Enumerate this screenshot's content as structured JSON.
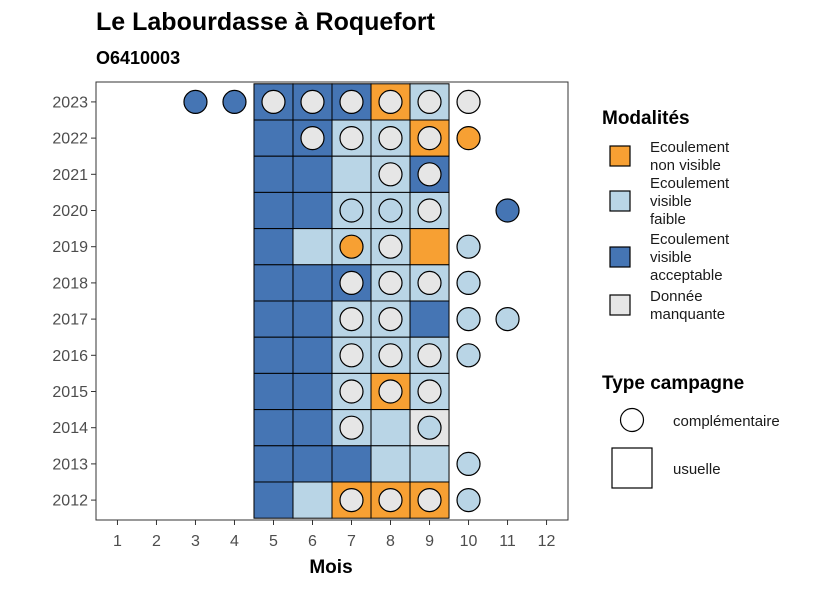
{
  "colors": {
    "non_visible": "#F7A033",
    "faible": "#B9D5E6",
    "acceptable": "#4575B4",
    "manquante": "#E6E6E6"
  },
  "chart_data": {
    "type": "heatmap",
    "title": "Le Labourdasse à Roquefort",
    "subtitle": "O6410003",
    "xlabel": "Mois",
    "ylabel": "",
    "x_ticks": [
      "1",
      "2",
      "3",
      "4",
      "5",
      "6",
      "7",
      "8",
      "9",
      "10",
      "11",
      "12"
    ],
    "y_ticks": [
      "2012",
      "2013",
      "2014",
      "2015",
      "2016",
      "2017",
      "2018",
      "2019",
      "2020",
      "2021",
      "2022",
      "2023"
    ],
    "grid": false,
    "legend_position": "right",
    "legend": {
      "modalites_title": "Modalités",
      "modalites": [
        {
          "key": "non_visible",
          "lines": [
            "Ecoulement",
            "non visible"
          ]
        },
        {
          "key": "faible",
          "lines": [
            "Ecoulement",
            "visible",
            "faible"
          ]
        },
        {
          "key": "acceptable",
          "lines": [
            "Ecoulement",
            "visible",
            "acceptable"
          ]
        },
        {
          "key": "manquante",
          "lines": [
            "Donnée",
            "manquante"
          ]
        }
      ],
      "campagne_title": "Type campagne",
      "campagnes": [
        {
          "shape": "circle",
          "label": "complémentaire"
        },
        {
          "shape": "square",
          "label": "usuelle"
        }
      ]
    },
    "cells": [
      {
        "year": 2023,
        "month": 3,
        "shape": "circle",
        "value": "acceptable"
      },
      {
        "year": 2023,
        "month": 4,
        "shape": "circle",
        "value": "acceptable"
      },
      {
        "year": 2023,
        "month": 5,
        "shape": "square",
        "value": "acceptable"
      },
      {
        "year": 2023,
        "month": 5,
        "shape": "circle",
        "value": "manquante"
      },
      {
        "year": 2023,
        "month": 6,
        "shape": "square",
        "value": "acceptable"
      },
      {
        "year": 2023,
        "month": 6,
        "shape": "circle",
        "value": "manquante"
      },
      {
        "year": 2023,
        "month": 7,
        "shape": "square",
        "value": "acceptable"
      },
      {
        "year": 2023,
        "month": 7,
        "shape": "circle",
        "value": "manquante"
      },
      {
        "year": 2023,
        "month": 8,
        "shape": "square",
        "value": "non_visible"
      },
      {
        "year": 2023,
        "month": 8,
        "shape": "circle",
        "value": "manquante"
      },
      {
        "year": 2023,
        "month": 9,
        "shape": "square",
        "value": "faible"
      },
      {
        "year": 2023,
        "month": 9,
        "shape": "circle",
        "value": "manquante"
      },
      {
        "year": 2023,
        "month": 10,
        "shape": "circle",
        "value": "manquante"
      },
      {
        "year": 2022,
        "month": 5,
        "shape": "square",
        "value": "acceptable"
      },
      {
        "year": 2022,
        "month": 6,
        "shape": "square",
        "value": "acceptable"
      },
      {
        "year": 2022,
        "month": 6,
        "shape": "circle",
        "value": "manquante"
      },
      {
        "year": 2022,
        "month": 7,
        "shape": "square",
        "value": "faible"
      },
      {
        "year": 2022,
        "month": 7,
        "shape": "circle",
        "value": "manquante"
      },
      {
        "year": 2022,
        "month": 8,
        "shape": "square",
        "value": "faible"
      },
      {
        "year": 2022,
        "month": 8,
        "shape": "circle",
        "value": "manquante"
      },
      {
        "year": 2022,
        "month": 9,
        "shape": "square",
        "value": "non_visible"
      },
      {
        "year": 2022,
        "month": 9,
        "shape": "circle",
        "value": "manquante"
      },
      {
        "year": 2022,
        "month": 10,
        "shape": "circle",
        "value": "non_visible"
      },
      {
        "year": 2021,
        "month": 5,
        "shape": "square",
        "value": "acceptable"
      },
      {
        "year": 2021,
        "month": 6,
        "shape": "square",
        "value": "acceptable"
      },
      {
        "year": 2021,
        "month": 7,
        "shape": "square",
        "value": "faible"
      },
      {
        "year": 2021,
        "month": 8,
        "shape": "square",
        "value": "faible"
      },
      {
        "year": 2021,
        "month": 8,
        "shape": "circle",
        "value": "manquante"
      },
      {
        "year": 2021,
        "month": 9,
        "shape": "square",
        "value": "acceptable"
      },
      {
        "year": 2021,
        "month": 9,
        "shape": "circle",
        "value": "manquante"
      },
      {
        "year": 2020,
        "month": 5,
        "shape": "square",
        "value": "acceptable"
      },
      {
        "year": 2020,
        "month": 6,
        "shape": "square",
        "value": "acceptable"
      },
      {
        "year": 2020,
        "month": 7,
        "shape": "square",
        "value": "faible"
      },
      {
        "year": 2020,
        "month": 7,
        "shape": "circle",
        "value": "faible"
      },
      {
        "year": 2020,
        "month": 8,
        "shape": "square",
        "value": "faible"
      },
      {
        "year": 2020,
        "month": 8,
        "shape": "circle",
        "value": "faible"
      },
      {
        "year": 2020,
        "month": 9,
        "shape": "square",
        "value": "faible"
      },
      {
        "year": 2020,
        "month": 9,
        "shape": "circle",
        "value": "manquante"
      },
      {
        "year": 2020,
        "month": 11,
        "shape": "circle",
        "value": "acceptable"
      },
      {
        "year": 2019,
        "month": 5,
        "shape": "square",
        "value": "acceptable"
      },
      {
        "year": 2019,
        "month": 6,
        "shape": "square",
        "value": "faible"
      },
      {
        "year": 2019,
        "month": 7,
        "shape": "square",
        "value": "faible"
      },
      {
        "year": 2019,
        "month": 7,
        "shape": "circle",
        "value": "non_visible"
      },
      {
        "year": 2019,
        "month": 8,
        "shape": "square",
        "value": "faible"
      },
      {
        "year": 2019,
        "month": 8,
        "shape": "circle",
        "value": "manquante"
      },
      {
        "year": 2019,
        "month": 9,
        "shape": "square",
        "value": "non_visible"
      },
      {
        "year": 2019,
        "month": 10,
        "shape": "circle",
        "value": "faible"
      },
      {
        "year": 2018,
        "month": 5,
        "shape": "square",
        "value": "acceptable"
      },
      {
        "year": 2018,
        "month": 6,
        "shape": "square",
        "value": "acceptable"
      },
      {
        "year": 2018,
        "month": 7,
        "shape": "square",
        "value": "acceptable"
      },
      {
        "year": 2018,
        "month": 7,
        "shape": "circle",
        "value": "manquante"
      },
      {
        "year": 2018,
        "month": 8,
        "shape": "square",
        "value": "faible"
      },
      {
        "year": 2018,
        "month": 8,
        "shape": "circle",
        "value": "manquante"
      },
      {
        "year": 2018,
        "month": 9,
        "shape": "square",
        "value": "faible"
      },
      {
        "year": 2018,
        "month": 9,
        "shape": "circle",
        "value": "manquante"
      },
      {
        "year": 2018,
        "month": 10,
        "shape": "circle",
        "value": "faible"
      },
      {
        "year": 2017,
        "month": 5,
        "shape": "square",
        "value": "acceptable"
      },
      {
        "year": 2017,
        "month": 6,
        "shape": "square",
        "value": "acceptable"
      },
      {
        "year": 2017,
        "month": 7,
        "shape": "square",
        "value": "faible"
      },
      {
        "year": 2017,
        "month": 7,
        "shape": "circle",
        "value": "manquante"
      },
      {
        "year": 2017,
        "month": 8,
        "shape": "square",
        "value": "faible"
      },
      {
        "year": 2017,
        "month": 8,
        "shape": "circle",
        "value": "manquante"
      },
      {
        "year": 2017,
        "month": 9,
        "shape": "square",
        "value": "acceptable"
      },
      {
        "year": 2017,
        "month": 10,
        "shape": "circle",
        "value": "faible"
      },
      {
        "year": 2017,
        "month": 11,
        "shape": "circle",
        "value": "faible"
      },
      {
        "year": 2016,
        "month": 5,
        "shape": "square",
        "value": "acceptable"
      },
      {
        "year": 2016,
        "month": 6,
        "shape": "square",
        "value": "acceptable"
      },
      {
        "year": 2016,
        "month": 7,
        "shape": "square",
        "value": "faible"
      },
      {
        "year": 2016,
        "month": 7,
        "shape": "circle",
        "value": "manquante"
      },
      {
        "year": 2016,
        "month": 8,
        "shape": "square",
        "value": "faible"
      },
      {
        "year": 2016,
        "month": 8,
        "shape": "circle",
        "value": "manquante"
      },
      {
        "year": 2016,
        "month": 9,
        "shape": "square",
        "value": "faible"
      },
      {
        "year": 2016,
        "month": 9,
        "shape": "circle",
        "value": "manquante"
      },
      {
        "year": 2016,
        "month": 10,
        "shape": "circle",
        "value": "faible"
      },
      {
        "year": 2015,
        "month": 5,
        "shape": "square",
        "value": "acceptable"
      },
      {
        "year": 2015,
        "month": 6,
        "shape": "square",
        "value": "acceptable"
      },
      {
        "year": 2015,
        "month": 7,
        "shape": "square",
        "value": "faible"
      },
      {
        "year": 2015,
        "month": 7,
        "shape": "circle",
        "value": "manquante"
      },
      {
        "year": 2015,
        "month": 8,
        "shape": "square",
        "value": "non_visible"
      },
      {
        "year": 2015,
        "month": 8,
        "shape": "circle",
        "value": "manquante"
      },
      {
        "year": 2015,
        "month": 9,
        "shape": "square",
        "value": "faible"
      },
      {
        "year": 2015,
        "month": 9,
        "shape": "circle",
        "value": "manquante"
      },
      {
        "year": 2014,
        "month": 5,
        "shape": "square",
        "value": "acceptable"
      },
      {
        "year": 2014,
        "month": 6,
        "shape": "square",
        "value": "acceptable"
      },
      {
        "year": 2014,
        "month": 7,
        "shape": "square",
        "value": "faible"
      },
      {
        "year": 2014,
        "month": 7,
        "shape": "circle",
        "value": "manquante"
      },
      {
        "year": 2014,
        "month": 8,
        "shape": "square",
        "value": "faible"
      },
      {
        "year": 2014,
        "month": 9,
        "shape": "square",
        "value": "manquante"
      },
      {
        "year": 2014,
        "month": 9,
        "shape": "circle",
        "value": "faible"
      },
      {
        "year": 2013,
        "month": 5,
        "shape": "square",
        "value": "acceptable"
      },
      {
        "year": 2013,
        "month": 6,
        "shape": "square",
        "value": "acceptable"
      },
      {
        "year": 2013,
        "month": 7,
        "shape": "square",
        "value": "acceptable"
      },
      {
        "year": 2013,
        "month": 8,
        "shape": "square",
        "value": "faible"
      },
      {
        "year": 2013,
        "month": 9,
        "shape": "square",
        "value": "faible"
      },
      {
        "year": 2013,
        "month": 10,
        "shape": "circle",
        "value": "faible"
      },
      {
        "year": 2012,
        "month": 5,
        "shape": "square",
        "value": "acceptable"
      },
      {
        "year": 2012,
        "month": 6,
        "shape": "square",
        "value": "faible"
      },
      {
        "year": 2012,
        "month": 7,
        "shape": "square",
        "value": "non_visible"
      },
      {
        "year": 2012,
        "month": 7,
        "shape": "circle",
        "value": "manquante"
      },
      {
        "year": 2012,
        "month": 8,
        "shape": "square",
        "value": "non_visible"
      },
      {
        "year": 2012,
        "month": 8,
        "shape": "circle",
        "value": "manquante"
      },
      {
        "year": 2012,
        "month": 9,
        "shape": "square",
        "value": "non_visible"
      },
      {
        "year": 2012,
        "month": 9,
        "shape": "circle",
        "value": "manquante"
      },
      {
        "year": 2012,
        "month": 10,
        "shape": "circle",
        "value": "faible"
      }
    ]
  }
}
